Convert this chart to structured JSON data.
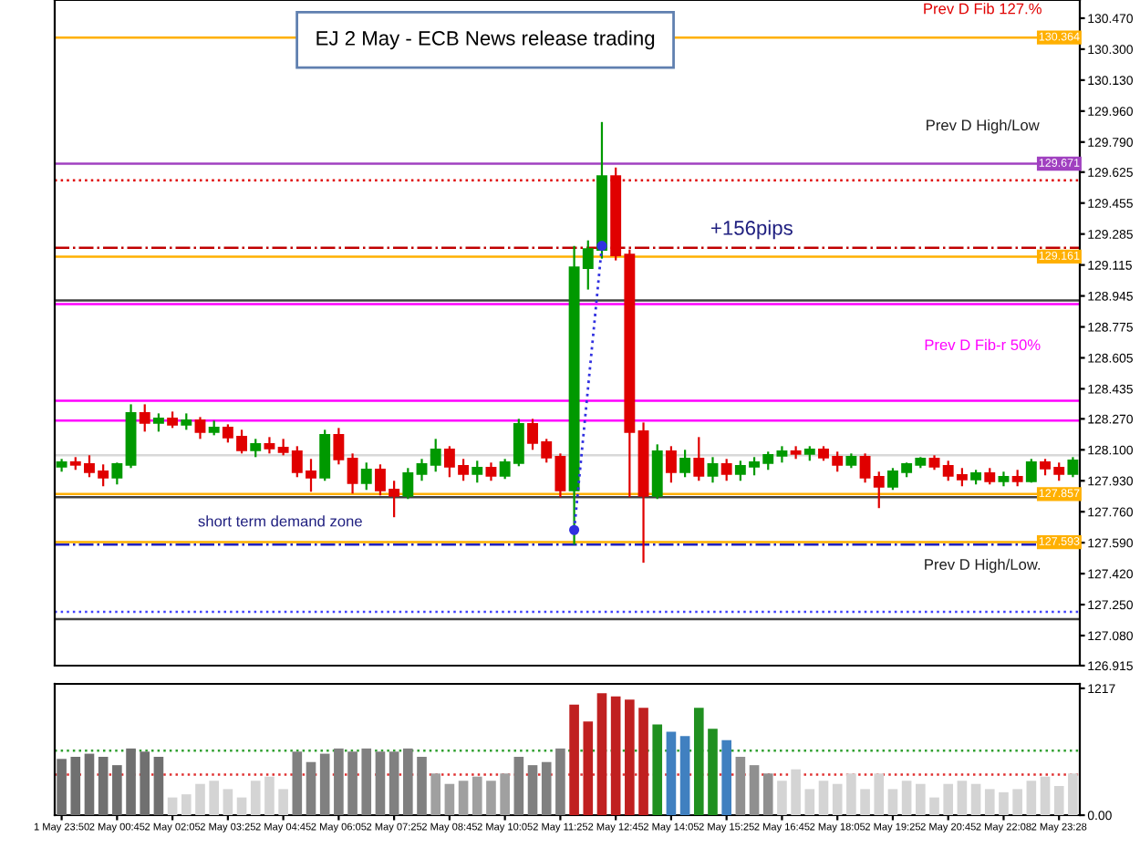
{
  "chart_data": [
    {
      "type": "candlestick",
      "title": "EJ 2 May - ECB News release trading",
      "tick_labels": "y",
      "colors": [
        "#009900",
        "#e00000",
        "#e00000",
        "#e00000",
        "#009900",
        "#009900",
        "#e00000",
        "#009900",
        "#e00000",
        "#009900",
        "#e00000",
        "#009900",
        "#e00000",
        "#e00000",
        "#009900",
        "#e00000",
        "#e00000",
        "#e00000",
        "#e00000",
        "#009900",
        "#e00000",
        "#e00000",
        "#009900",
        "#e00000",
        "#e00000",
        "#009900",
        "#009900",
        "#009900",
        "#e00000",
        "#e00000",
        "#009900",
        "#e00000",
        "#009900",
        "#009900",
        "#e00000",
        "#e00000",
        "#e00000",
        "#009900",
        "#009900",
        "#009900",
        "#e00000",
        "#e00000",
        "#e00000",
        "#009900",
        "#e00000",
        "#009900",
        "#e00000",
        "#009900",
        "#e00000",
        "#009900",
        "#009900",
        "#009900",
        "#009900",
        "#e00000",
        "#009900",
        "#e00000",
        "#e00000",
        "#009900",
        "#e00000",
        "#e00000",
        "#009900",
        "#009900",
        "#009900",
        "#e00000",
        "#e00000",
        "#e00000",
        "#009900",
        "#e00000",
        "#009900",
        "#e00000",
        "#009900",
        "#e00000",
        "#e00000",
        "#009900"
      ],
      "ohlc": [
        [
          128.01,
          128.05,
          127.98,
          128.03
        ],
        [
          128.03,
          128.06,
          127.99,
          128.02
        ],
        [
          128.02,
          128.07,
          127.95,
          127.98
        ],
        [
          127.98,
          128.02,
          127.9,
          127.95
        ],
        [
          127.95,
          128.03,
          127.91,
          128.02
        ],
        [
          128.02,
          128.35,
          128.0,
          128.3
        ],
        [
          128.3,
          128.35,
          128.2,
          128.25
        ],
        [
          128.25,
          128.3,
          128.2,
          128.27
        ],
        [
          128.27,
          128.31,
          128.22,
          128.24
        ],
        [
          128.24,
          128.3,
          128.21,
          128.26
        ],
        [
          128.26,
          128.28,
          128.16,
          128.2
        ],
        [
          128.2,
          128.26,
          128.18,
          128.22
        ],
        [
          128.22,
          128.24,
          128.14,
          128.17
        ],
        [
          128.17,
          128.21,
          128.08,
          128.1
        ],
        [
          128.1,
          128.16,
          128.06,
          128.13
        ],
        [
          128.13,
          128.17,
          128.08,
          128.11
        ],
        [
          128.11,
          128.16,
          128.07,
          128.09
        ],
        [
          128.09,
          128.12,
          127.95,
          127.98
        ],
        [
          127.98,
          128.05,
          127.87,
          127.95
        ],
        [
          127.95,
          128.21,
          127.93,
          128.18
        ],
        [
          128.18,
          128.22,
          128.02,
          128.05
        ],
        [
          128.05,
          128.08,
          127.86,
          127.92
        ],
        [
          127.92,
          128.03,
          127.88,
          127.99
        ],
        [
          127.99,
          128.02,
          127.85,
          127.88
        ],
        [
          127.88,
          127.93,
          127.73,
          127.85
        ],
        [
          127.85,
          128.0,
          127.83,
          127.97
        ],
        [
          127.97,
          128.05,
          127.93,
          128.02
        ],
        [
          128.02,
          128.16,
          127.98,
          128.1
        ],
        [
          128.1,
          128.12,
          127.95,
          128.01
        ],
        [
          128.01,
          128.05,
          127.93,
          127.97
        ],
        [
          127.97,
          128.04,
          127.92,
          128.0
        ],
        [
          128.0,
          128.03,
          127.93,
          127.96
        ],
        [
          127.96,
          128.05,
          127.94,
          128.03
        ],
        [
          128.03,
          128.27,
          128.01,
          128.24
        ],
        [
          128.24,
          128.27,
          128.1,
          128.14
        ],
        [
          128.14,
          128.16,
          128.03,
          128.06
        ],
        [
          128.06,
          128.08,
          127.84,
          127.88
        ],
        [
          127.88,
          129.22,
          127.58,
          129.1
        ],
        [
          129.1,
          129.25,
          128.98,
          129.2
        ],
        [
          129.2,
          129.9,
          129.15,
          129.6
        ],
        [
          129.6,
          129.65,
          129.14,
          129.17
        ],
        [
          129.17,
          129.2,
          127.84,
          128.2
        ],
        [
          128.2,
          128.25,
          127.48,
          127.85
        ],
        [
          127.85,
          128.13,
          127.83,
          128.09
        ],
        [
          128.09,
          128.12,
          127.92,
          127.98
        ],
        [
          127.98,
          128.1,
          127.95,
          128.05
        ],
        [
          128.05,
          128.17,
          127.93,
          127.96
        ],
        [
          127.96,
          128.06,
          127.92,
          128.02
        ],
        [
          128.02,
          128.05,
          127.93,
          127.97
        ],
        [
          127.97,
          128.04,
          127.93,
          128.01
        ],
        [
          128.01,
          128.06,
          127.96,
          128.03
        ],
        [
          128.03,
          128.09,
          127.99,
          128.07
        ],
        [
          128.07,
          128.12,
          128.03,
          128.09
        ],
        [
          128.09,
          128.12,
          128.05,
          128.08
        ],
        [
          128.08,
          128.12,
          128.04,
          128.1
        ],
        [
          128.1,
          128.12,
          128.04,
          128.06
        ],
        [
          128.06,
          128.09,
          127.98,
          128.02
        ],
        [
          128.02,
          128.08,
          128.0,
          128.06
        ],
        [
          128.06,
          128.08,
          127.92,
          127.95
        ],
        [
          127.95,
          127.98,
          127.78,
          127.9
        ],
        [
          127.9,
          128.0,
          127.88,
          127.98
        ],
        [
          127.98,
          128.03,
          127.95,
          128.02
        ],
        [
          128.02,
          128.06,
          128.0,
          128.05
        ],
        [
          128.05,
          128.07,
          127.99,
          128.01
        ],
        [
          128.01,
          128.04,
          127.93,
          127.96
        ],
        [
          127.96,
          128.0,
          127.9,
          127.94
        ],
        [
          127.94,
          127.99,
          127.91,
          127.97
        ],
        [
          127.97,
          128.0,
          127.91,
          127.93
        ],
        [
          127.93,
          127.98,
          127.9,
          127.95
        ],
        [
          127.95,
          127.99,
          127.9,
          127.93
        ],
        [
          127.93,
          128.05,
          127.92,
          128.03
        ],
        [
          128.03,
          128.05,
          127.96,
          128.0
        ],
        [
          128.0,
          128.03,
          127.93,
          127.97
        ],
        [
          127.97,
          128.06,
          127.95,
          128.04
        ]
      ],
      "series": [
        {
          "type": "line",
          "values": [
            null,
            null,
            null,
            null,
            null,
            null,
            null,
            null,
            null,
            null,
            null,
            null,
            null,
            null,
            null,
            null,
            null,
            null,
            null,
            null,
            null,
            null,
            null,
            null,
            null,
            null,
            null,
            null,
            null,
            null,
            null,
            null,
            null,
            null,
            null,
            null,
            null,
            127.66,
            null,
            129.22,
            null,
            null,
            null,
            null,
            null,
            null,
            null,
            null,
            null,
            null,
            null,
            null,
            null,
            null,
            null,
            null,
            null,
            null,
            null,
            null,
            null,
            null,
            null,
            null,
            null,
            null,
            null,
            null,
            null,
            null,
            null,
            null,
            null,
            null
          ],
          "color": "#3030e0",
          "line_style": "dotted",
          "marker": "circle"
        }
      ],
      "ylim": [
        126.915,
        130.57
      ],
      "yticks": [
        {
          "value": 126.915,
          "label": "126.915"
        },
        {
          "value": 127.08,
          "label": "127.080"
        },
        {
          "value": 127.25,
          "label": "127.250"
        },
        {
          "value": 127.42,
          "label": "127.420"
        },
        {
          "value": 127.59,
          "label": "127.590"
        },
        {
          "value": 127.76,
          "label": "127.760"
        },
        {
          "value": 127.93,
          "label": "127.930"
        },
        {
          "value": 128.1,
          "label": "128.100"
        },
        {
          "value": 128.27,
          "label": "128.270"
        },
        128.435,
        {
          "value": 128.605,
          "label": "128.605"
        },
        128.775,
        128.945,
        129.115,
        129.285,
        129.455,
        129.625,
        {
          "value": 129.79,
          "label": "129.790"
        },
        {
          "value": 129.96,
          "label": "129.960"
        },
        {
          "value": 130.13,
          "label": "130.130"
        },
        {
          "value": 130.3,
          "label": "130.300"
        },
        {
          "value": 130.47,
          "label": "130.470"
        }
      ],
      "ref_lines": [
        {
          "axis": "y",
          "value": 130.364,
          "label": "130.364",
          "color": "#ffb000",
          "line_style": "solid"
        },
        {
          "axis": "y",
          "value": 129.671,
          "label": "129.671",
          "color": "#a040c0",
          "line_style": "solid"
        },
        {
          "axis": "y",
          "value": 129.58,
          "color": "#e00000",
          "line_style": "dotted"
        },
        {
          "axis": "y",
          "value": 129.21,
          "color": "#c00000",
          "line_style": "dashdot"
        },
        {
          "axis": "y",
          "value": 129.161,
          "label": "129.161",
          "color": "#ffb000",
          "line_style": "solid"
        },
        {
          "axis": "y",
          "value": 128.92,
          "color": "#404040",
          "line_style": "solid"
        },
        {
          "axis": "y",
          "value": 128.9,
          "color": "#ff00ff",
          "line_style": "solid"
        },
        {
          "axis": "y",
          "value": 128.37,
          "color": "#ff00ff",
          "line_style": "solid"
        },
        {
          "axis": "y",
          "value": 128.26,
          "color": "#ff00ff",
          "line_style": "solid"
        },
        {
          "axis": "y",
          "value": 128.07,
          "color": "#d8d8d8",
          "line_style": "solid"
        },
        {
          "axis": "y",
          "value": 127.857,
          "label": "127.857",
          "color": "#ffb000",
          "line_style": "solid"
        },
        {
          "axis": "y",
          "value": 127.84,
          "color": "#404040",
          "line_style": "solid"
        },
        {
          "axis": "y",
          "value": 127.593,
          "label": "127.593",
          "color": "#ffb000",
          "line_style": "solid"
        },
        {
          "axis": "y",
          "value": 127.58,
          "color": "#2020c0",
          "line_style": "dashdot"
        },
        {
          "axis": "y",
          "value": 127.21,
          "color": "#4040ff",
          "line_style": "dotted"
        },
        {
          "axis": "y",
          "value": 127.17,
          "color": "#404040",
          "line_style": "solid"
        }
      ],
      "annotations": [
        "Prev D Fib 127.%",
        "Prev D High/Low",
        "Prev D Fib-r 50%",
        "Prev D High/Low.",
        "short term demand zone",
        "+156pips"
      ]
    },
    {
      "type": "bar",
      "categories": [
        "1 May 23:50",
        null,
        null,
        null,
        "2 May 00:45",
        null,
        null,
        null,
        "2 May 02:05",
        null,
        null,
        null,
        "2 May 03:25",
        null,
        null,
        null,
        "2 May 04:45",
        null,
        null,
        null,
        "2 May 06:05",
        null,
        null,
        null,
        "2 May 07:25",
        null,
        null,
        null,
        "2 May 08:45",
        null,
        null,
        null,
        "2 May 10:05",
        null,
        null,
        null,
        "2 May 11:25",
        null,
        null,
        null,
        "2 May 12:45",
        null,
        null,
        null,
        "2 May 14:05",
        null,
        null,
        null,
        "2 May 15:25",
        null,
        null,
        null,
        "2 May 16:45",
        null,
        null,
        null,
        "2 May 18:05",
        null,
        null,
        null,
        "2 May 19:25",
        null,
        null,
        null,
        "2 May 20:45",
        null,
        null,
        null,
        "2 May 22:08",
        null,
        null,
        null,
        "2 May 23:28",
        null
      ],
      "values": [
        540,
        560,
        590,
        560,
        480,
        640,
        610,
        560,
        170,
        200,
        300,
        330,
        250,
        170,
        330,
        370,
        250,
        610,
        510,
        590,
        640,
        610,
        640,
        610,
        610,
        640,
        560,
        400,
        300,
        330,
        370,
        330,
        400,
        560,
        480,
        510,
        640,
        1060,
        900,
        1170,
        1140,
        1110,
        1030,
        870,
        800,
        760,
        1030,
        830,
        720,
        560,
        480,
        400,
        330,
        440,
        250,
        330,
        300,
        400,
        250,
        400,
        250,
        330,
        300,
        170,
        300,
        330,
        300,
        250,
        220,
        250,
        330,
        370,
        280,
        400
      ],
      "colors": [
        "#707070",
        "#707070",
        "#707070",
        "#707070",
        "#707070",
        "#707070",
        "#707070",
        "#707070",
        "#d4d4d4",
        "#d4d4d4",
        "#d4d4d4",
        "#d4d4d4",
        "#d4d4d4",
        "#d4d4d4",
        "#d4d4d4",
        "#d4d4d4",
        "#d4d4d4",
        "#808080",
        "#808080",
        "#808080",
        "#808080",
        "#808080",
        "#808080",
        "#808080",
        "#808080",
        "#808080",
        "#808080",
        "#a0a0a0",
        "#a0a0a0",
        "#a0a0a0",
        "#a0a0a0",
        "#a0a0a0",
        "#a0a0a0",
        "#808080",
        "#808080",
        "#808080",
        "#808080",
        "#c02020",
        "#c02020",
        "#c02020",
        "#c02020",
        "#c02020",
        "#c02020",
        "#209020",
        "#4080c0",
        "#4080c0",
        "#209020",
        "#209020",
        "#4080c0",
        "#909090",
        "#909090",
        "#909090",
        "#d4d4d4",
        "#d4d4d4",
        "#d4d4d4",
        "#d4d4d4",
        "#d4d4d4",
        "#d4d4d4",
        "#d4d4d4",
        "#d4d4d4",
        "#d4d4d4",
        "#d4d4d4",
        "#d4d4d4",
        "#d4d4d4",
        "#d4d4d4",
        "#d4d4d4",
        "#d4d4d4",
        "#d4d4d4",
        "#d4d4d4",
        "#d4d4d4",
        "#d4d4d4",
        "#d4d4d4",
        "#d4d4d4",
        "#d4d4d4"
      ],
      "ylim": [
        0,
        1260
      ],
      "yticks": [
        {
          "value": 0,
          "label": "0.00"
        },
        1217
      ],
      "ref_lines": [
        {
          "axis": "y",
          "value": 620,
          "color": "#30a030",
          "line_style": "dotted"
        },
        {
          "axis": "y",
          "value": 390,
          "color": "#e03030",
          "line_style": "dotted"
        }
      ]
    }
  ]
}
